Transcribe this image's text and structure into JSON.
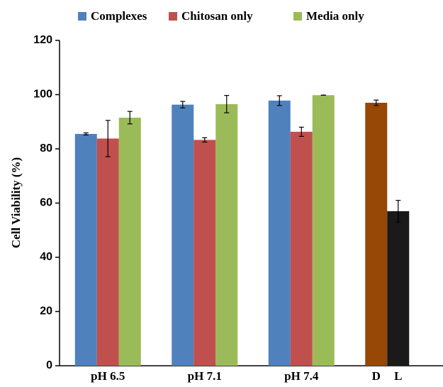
{
  "chart_data": {
    "type": "bar",
    "y_label": "Cell Viability (%)",
    "categories": [
      "pH 6.5",
      "pH 7.1",
      "pH 7.4"
    ],
    "series": [
      {
        "name": "Complexes",
        "color": "#4f81bd",
        "values": [
          85.5,
          96.3,
          97.8
        ],
        "errors": [
          0.4,
          1.2,
          1.8
        ]
      },
      {
        "name": "Chitosan only",
        "color": "#c0504d",
        "values": [
          83.8,
          83.3,
          86.3
        ],
        "errors": [
          6.7,
          0.8,
          1.7
        ]
      },
      {
        "name": "Media only",
        "color": "#9bbb59",
        "values": [
          91.5,
          96.5,
          99.8
        ],
        "errors": [
          2.3,
          3.2,
          0
        ]
      }
    ],
    "extra_bars": [
      {
        "label": "D",
        "color": "#974706",
        "value": 97,
        "error": 1
      },
      {
        "label": "L",
        "color": "#1a1a1a",
        "value": 57,
        "error": 4
      }
    ],
    "ylim": [
      0,
      120
    ],
    "yticks": [
      0,
      20,
      40,
      60,
      80,
      100,
      120
    ],
    "grid": false,
    "legend": "top"
  }
}
